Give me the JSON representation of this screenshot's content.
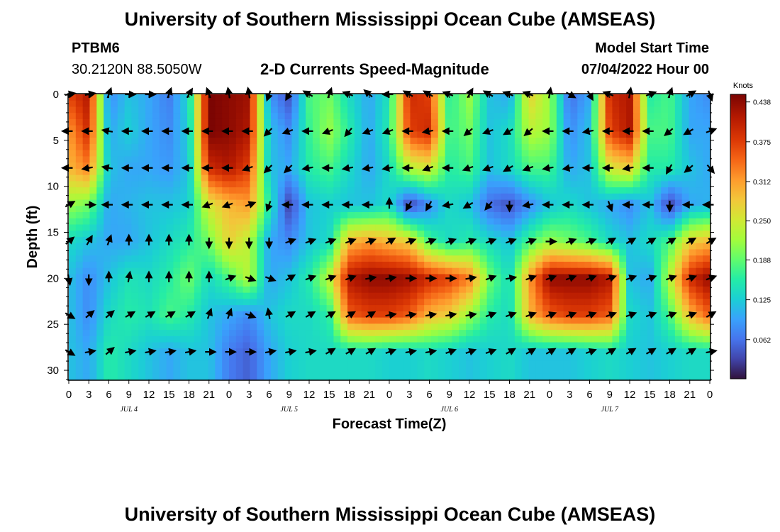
{
  "header": {
    "title": "University of Southern Mississippi Ocean Cube (AMSEAS)",
    "station": "PTBM6",
    "coords": "30.2120N  88.5050W",
    "subtitle": "2-D Currents Speed-Magnitude",
    "model_label": "Model Start Time",
    "model_time": "07/04/2022 Hour 00"
  },
  "footer": {
    "title": "University of Southern Mississippi Ocean Cube (AMSEAS)"
  },
  "chart_data": {
    "type": "heatmap",
    "title": "2-D Currents Speed-Magnitude",
    "xlabel": "Forecast Time(Z)",
    "ylabel": "Depth (ft)",
    "x_range": [
      0,
      96
    ],
    "y_range": [
      0,
      31
    ],
    "x_ticks": [
      "0",
      "3",
      "6",
      "9",
      "12",
      "15",
      "18",
      "21",
      "0",
      "3",
      "6",
      "9",
      "12",
      "15",
      "18",
      "21",
      "0",
      "3",
      "6",
      "9",
      "12",
      "15",
      "18",
      "21",
      "0",
      "3",
      "6",
      "9",
      "12",
      "15",
      "18",
      "21",
      "0"
    ],
    "y_ticks": [
      0,
      5,
      10,
      15,
      20,
      25,
      30
    ],
    "day_labels": [
      "JUL 4",
      "JUL 5",
      "JUL 6",
      "JUL 7"
    ],
    "colorbar": {
      "title": "Knots",
      "ticks": [
        "0.438",
        "0.375",
        "0.312",
        "0.250",
        "0.188",
        "0.125",
        "0.062"
      ],
      "range": [
        0,
        0.45
      ]
    },
    "depth_levels_ft": [
      0,
      4,
      8,
      12,
      16,
      20,
      24,
      28
    ],
    "speed_knots": [
      [
        0.38,
        0.42,
        0.08,
        0.12,
        0.1,
        0.07,
        0.14,
        0.45,
        0.44,
        0.43,
        0.09,
        0.04,
        0.18,
        0.2,
        0.14,
        0.1,
        0.15,
        0.4,
        0.38,
        0.16,
        0.22,
        0.12,
        0.1,
        0.28,
        0.22,
        0.06,
        0.1,
        0.4,
        0.42,
        0.16,
        0.18,
        0.1,
        0.08
      ],
      [
        0.32,
        0.4,
        0.1,
        0.13,
        0.1,
        0.08,
        0.13,
        0.45,
        0.44,
        0.42,
        0.12,
        0.08,
        0.17,
        0.22,
        0.16,
        0.1,
        0.16,
        0.38,
        0.4,
        0.17,
        0.2,
        0.12,
        0.14,
        0.24,
        0.22,
        0.08,
        0.12,
        0.38,
        0.42,
        0.18,
        0.18,
        0.1,
        0.1
      ],
      [
        0.3,
        0.34,
        0.12,
        0.1,
        0.1,
        0.09,
        0.12,
        0.4,
        0.42,
        0.38,
        0.12,
        0.1,
        0.16,
        0.18,
        0.14,
        0.1,
        0.14,
        0.24,
        0.26,
        0.16,
        0.18,
        0.12,
        0.14,
        0.18,
        0.18,
        0.1,
        0.12,
        0.26,
        0.28,
        0.16,
        0.16,
        0.12,
        0.1
      ],
      [
        0.22,
        0.2,
        0.1,
        0.11,
        0.12,
        0.12,
        0.13,
        0.26,
        0.3,
        0.32,
        0.16,
        0.03,
        0.12,
        0.13,
        0.12,
        0.12,
        0.14,
        0.03,
        0.08,
        0.14,
        0.12,
        0.06,
        0.04,
        0.08,
        0.12,
        0.14,
        0.12,
        0.1,
        0.08,
        0.12,
        0.03,
        0.1,
        0.11
      ],
      [
        0.14,
        0.12,
        0.1,
        0.1,
        0.12,
        0.14,
        0.16,
        0.2,
        0.28,
        0.24,
        0.1,
        0.08,
        0.12,
        0.14,
        0.3,
        0.32,
        0.3,
        0.28,
        0.18,
        0.14,
        0.16,
        0.14,
        0.12,
        0.18,
        0.22,
        0.2,
        0.18,
        0.14,
        0.12,
        0.14,
        0.18,
        0.28,
        0.3
      ],
      [
        0.12,
        0.08,
        0.12,
        0.15,
        0.14,
        0.16,
        0.2,
        0.14,
        0.18,
        0.24,
        0.1,
        0.12,
        0.16,
        0.24,
        0.42,
        0.44,
        0.44,
        0.43,
        0.4,
        0.38,
        0.34,
        0.2,
        0.14,
        0.32,
        0.44,
        0.44,
        0.44,
        0.42,
        0.12,
        0.1,
        0.24,
        0.4,
        0.44
      ],
      [
        0.12,
        0.08,
        0.14,
        0.16,
        0.15,
        0.18,
        0.16,
        0.12,
        0.1,
        0.08,
        0.12,
        0.14,
        0.14,
        0.16,
        0.36,
        0.38,
        0.38,
        0.36,
        0.3,
        0.28,
        0.22,
        0.16,
        0.14,
        0.3,
        0.36,
        0.38,
        0.38,
        0.36,
        0.14,
        0.12,
        0.18,
        0.3,
        0.36
      ],
      [
        0.12,
        0.1,
        0.16,
        0.14,
        0.12,
        0.1,
        0.12,
        0.12,
        0.07,
        0.05,
        0.1,
        0.13,
        0.14,
        0.14,
        0.14,
        0.14,
        0.13,
        0.13,
        0.14,
        0.13,
        0.12,
        0.13,
        0.14,
        0.12,
        0.12,
        0.12,
        0.13,
        0.14,
        0.13,
        0.12,
        0.13,
        0.14,
        0.14
      ]
    ],
    "direction_deg": [
      [
        80,
        80,
        20,
        90,
        90,
        20,
        30,
        340,
        350,
        350,
        200,
        210,
        300,
        20,
        290,
        310,
        270,
        300,
        300,
        290,
        30,
        300,
        290,
        290,
        10,
        120,
        150,
        290,
        10,
        70,
        20,
        60,
        160
      ],
      [
        270,
        270,
        280,
        270,
        270,
        270,
        270,
        270,
        270,
        270,
        225,
        250,
        270,
        250,
        220,
        250,
        250,
        270,
        260,
        270,
        230,
        250,
        240,
        230,
        270,
        270,
        260,
        270,
        270,
        270,
        230,
        240,
        70
      ],
      [
        270,
        260,
        280,
        270,
        270,
        270,
        270,
        270,
        270,
        250,
        225,
        225,
        260,
        270,
        260,
        260,
        260,
        270,
        250,
        270,
        250,
        250,
        240,
        250,
        260,
        260,
        270,
        270,
        260,
        270,
        210,
        230,
        140
      ],
      [
        60,
        90,
        270,
        270,
        270,
        270,
        270,
        250,
        250,
        70,
        200,
        270,
        270,
        270,
        270,
        270,
        0,
        210,
        210,
        260,
        240,
        220,
        180,
        260,
        270,
        270,
        270,
        160,
        270,
        270,
        180,
        270,
        270
      ],
      [
        50,
        30,
        20,
        0,
        0,
        0,
        0,
        180,
        180,
        180,
        180,
        70,
        70,
        70,
        70,
        70,
        60,
        70,
        70,
        70,
        70,
        70,
        70,
        70,
        90,
        70,
        70,
        60,
        60,
        60,
        60,
        60,
        60
      ],
      [
        170,
        180,
        0,
        10,
        0,
        0,
        0,
        0,
        70,
        110,
        110,
        60,
        70,
        70,
        70,
        80,
        80,
        90,
        90,
        90,
        80,
        70,
        80,
        70,
        70,
        70,
        70,
        70,
        70,
        70,
        70,
        70,
        70
      ],
      [
        120,
        50,
        50,
        60,
        60,
        60,
        60,
        20,
        20,
        110,
        350,
        60,
        60,
        60,
        60,
        60,
        80,
        80,
        80,
        80,
        80,
        70,
        70,
        70,
        70,
        70,
        70,
        70,
        70,
        70,
        70,
        70,
        60
      ],
      [
        120,
        80,
        50,
        80,
        80,
        80,
        80,
        90,
        90,
        90,
        80,
        80,
        80,
        60,
        60,
        60,
        70,
        80,
        80,
        70,
        70,
        70,
        60,
        60,
        60,
        60,
        70,
        60,
        60,
        60,
        60,
        60,
        80
      ]
    ]
  }
}
